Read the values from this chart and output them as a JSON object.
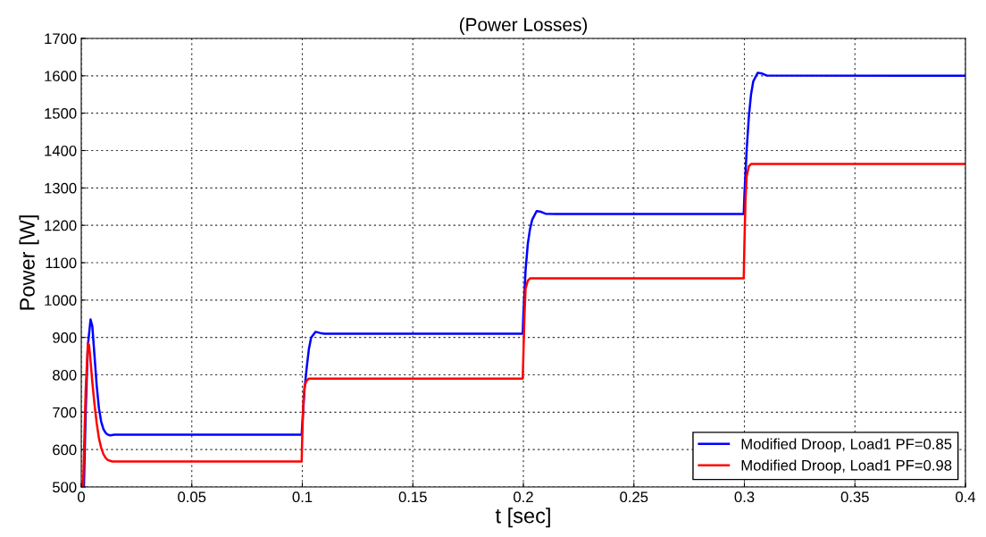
{
  "chart_data": {
    "type": "line",
    "title": "(Power Losses)",
    "xlabel": "t [sec]",
    "ylabel": "Power [W]",
    "xlim": [
      0,
      0.4
    ],
    "ylim": [
      500,
      1700
    ],
    "xticks": [
      0,
      0.05,
      0.1,
      0.15,
      0.2,
      0.25,
      0.3,
      0.35,
      0.4
    ],
    "yticks": [
      500,
      600,
      700,
      800,
      900,
      1000,
      1100,
      1200,
      1300,
      1400,
      1500,
      1600,
      1700
    ],
    "grid": true,
    "legend": "bottom right",
    "line_style": "solid",
    "series": [
      {
        "name": "Modified Droop, Load1 PF=0.85",
        "color": "#0000ff",
        "x": [
          0.0012,
          0.002,
          0.003,
          0.0042,
          0.005,
          0.006,
          0.007,
          0.008,
          0.009,
          0.01,
          0.011,
          0.012,
          0.013,
          0.015,
          0.0997,
          0.1,
          0.101,
          0.102,
          0.103,
          0.104,
          0.106,
          0.108,
          0.11,
          0.1997,
          0.2,
          0.201,
          0.202,
          0.203,
          0.204,
          0.206,
          0.208,
          0.21,
          0.215,
          0.2997,
          0.3,
          0.301,
          0.302,
          0.303,
          0.304,
          0.306,
          0.308,
          0.31,
          0.4
        ],
        "values": [
          500,
          700,
          880,
          948,
          930,
          850,
          770,
          710,
          675,
          655,
          645,
          640,
          638,
          640,
          640,
          670,
          760,
          820,
          870,
          900,
          915,
          912,
          910,
          910,
          960,
          1080,
          1150,
          1190,
          1215,
          1238,
          1236,
          1231,
          1230,
          1230,
          1280,
          1400,
          1490,
          1550,
          1585,
          1608,
          1606,
          1601,
          1600
        ]
      },
      {
        "name": "Modified Droop, Load1 PF=0.98",
        "color": "#ff0000",
        "x": [
          0.0008,
          0.0015,
          0.002,
          0.003,
          0.0035,
          0.004,
          0.005,
          0.006,
          0.007,
          0.008,
          0.009,
          0.01,
          0.011,
          0.012,
          0.014,
          0.0997,
          0.1,
          0.1005,
          0.101,
          0.102,
          0.103,
          0.1997,
          0.2,
          0.2005,
          0.201,
          0.202,
          0.203,
          0.2997,
          0.3,
          0.3005,
          0.301,
          0.302,
          0.303,
          0.4
        ],
        "values": [
          500,
          650,
          760,
          885,
          880,
          850,
          780,
          720,
          670,
          630,
          605,
          588,
          578,
          572,
          568,
          568,
          640,
          730,
          770,
          785,
          790,
          790,
          850,
          960,
          1030,
          1052,
          1058,
          1058,
          1150,
          1270,
          1330,
          1358,
          1364,
          1364
        ]
      }
    ]
  }
}
